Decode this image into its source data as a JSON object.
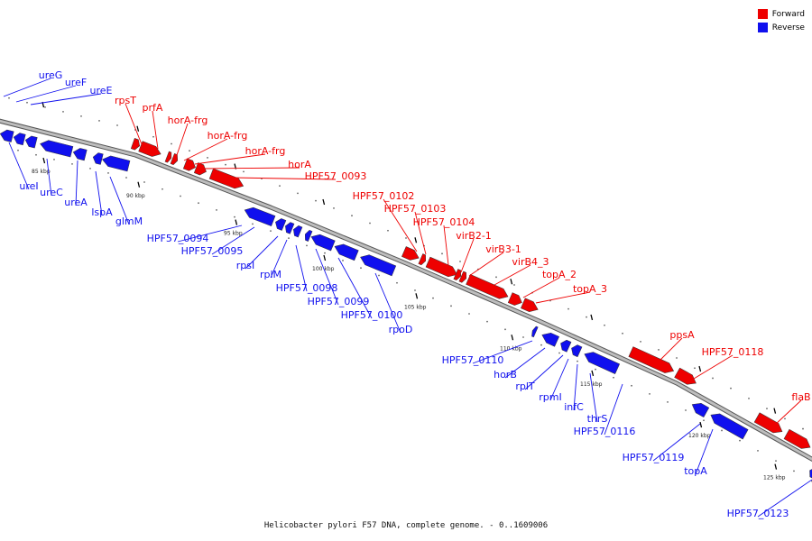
{
  "caption": "Helicobacter pylori F57 DNA, complete genome. - 0..1609006",
  "legend": [
    {
      "label": "Forward",
      "color": "#ee0000"
    },
    {
      "label": "Reverse",
      "color": "#1010ee"
    }
  ],
  "colors": {
    "forward": "#ee0000",
    "reverse": "#1010ee",
    "backbone": "#777777"
  },
  "tick_labels": [
    "85 kbp",
    "90 kbp",
    "95 kbp",
    "100 kbp",
    "105 kbp",
    "110 kbp",
    "115 kbp",
    "120 kbp",
    "125 kbp"
  ],
  "forward_genes": [
    "rpsT",
    "prfA",
    "horA-frg",
    "horA-frg",
    "horA-frg",
    "horA",
    "HPF57_0093",
    "HPF57_0102",
    "HPF57_0103",
    "HPF57_0104",
    "virB2-1",
    "virB3-1",
    "virB4_3",
    "topA_2",
    "topA_3",
    "ppsA",
    "HPF57_0118",
    "flaB"
  ],
  "reverse_genes": [
    "ureG",
    "ureF",
    "ureE",
    "ureI",
    "ureC",
    "ureA",
    "lspA",
    "glmM",
    "HPF57_0094",
    "HPF57_0095",
    "rpsI",
    "rplM",
    "HPF57_0098",
    "HPF57_0099",
    "HPF57_0100",
    "rpoD",
    "HPF57_0110",
    "horB",
    "rplT",
    "rpmI",
    "infC",
    "thrS",
    "HPF57_0116",
    "HPF57_0119",
    "topA",
    "HPF57_0123"
  ]
}
